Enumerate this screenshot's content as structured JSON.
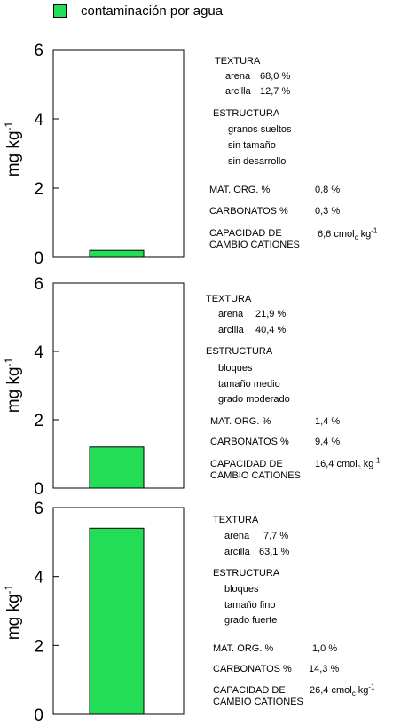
{
  "legend": {
    "label": "contaminación por agua",
    "color": "#22dd55"
  },
  "chart_data": [
    {
      "type": "bar",
      "ylabel": "mg kg-1",
      "ylim": [
        0,
        6
      ],
      "yticks": [
        "0",
        "2",
        "4",
        "6"
      ],
      "series": [
        {
          "name": "contaminación por agua",
          "values": [
            0.2
          ]
        }
      ]
    },
    {
      "type": "bar",
      "ylabel": "mg kg-1",
      "ylim": [
        0,
        6
      ],
      "yticks": [
        "0",
        "2",
        "4",
        "6"
      ],
      "series": [
        {
          "name": "contaminación por agua",
          "values": [
            1.2
          ]
        }
      ]
    },
    {
      "type": "bar",
      "ylabel": "mg kg-1",
      "ylim": [
        0,
        6
      ],
      "yticks": [
        "0",
        "2",
        "4",
        "6"
      ],
      "series": [
        {
          "name": "contaminación por agua",
          "values": [
            5.4
          ]
        }
      ]
    }
  ],
  "panels": [
    {
      "textura_label": "TEXTURA",
      "arena_label": "arena",
      "arena_value": "68,0",
      "arena_unit": "%",
      "arcilla_label": "arcilla",
      "arcilla_value": "12,7",
      "arcilla_unit": "%",
      "estructura_label": "ESTRUCTURA",
      "estructura_1": "granos sueltos",
      "estructura_2": "sin tamaño",
      "estructura_3": "sin desarrollo",
      "mat_org_label": "MAT. ORG. %",
      "mat_org_value": "0,8 %",
      "carbonatos_label": "CARBONATOS %",
      "carbonatos_value": "0,3 %",
      "cic_label_1": "CAPACIDAD DE",
      "cic_label_2": "CAMBIO CATIONES",
      "cic_value": "6,6 cmol",
      "cic_sub": "c",
      "cic_unit": " kg",
      "cic_sup": "-1"
    },
    {
      "textura_label": "TEXTURA",
      "arena_label": "arena",
      "arena_value": "21,9",
      "arena_unit": "%",
      "arcilla_label": "arcilla",
      "arcilla_value": "40,4",
      "arcilla_unit": "%",
      "estructura_label": "ESTRUCTURA",
      "estructura_1": "bloques",
      "estructura_2": "tamaño   medio",
      "estructura_3": "grado   moderado",
      "mat_org_label": "MAT. ORG. %",
      "mat_org_value": "1,4 %",
      "carbonatos_label": "CARBONATOS %",
      "carbonatos_value": "9,4 %",
      "cic_label_1": "CAPACIDAD DE",
      "cic_label_2": "CAMBIO CATIONES",
      "cic_value": "16,4 cmol",
      "cic_sub": "c",
      "cic_unit": " kg",
      "cic_sup": "-1"
    },
    {
      "textura_label": "TEXTURA",
      "arena_label": "arena",
      "arena_value": "7,7",
      "arena_unit": "%",
      "arcilla_label": "arcilla",
      "arcilla_value": "63,1",
      "arcilla_unit": "%",
      "estructura_label": "ESTRUCTURA",
      "estructura_1": "bloques",
      "estructura_2": "tamaño  fino",
      "estructura_3": "grado  fuerte",
      "mat_org_label": "MAT. ORG. %",
      "mat_org_value": "1,0 %",
      "carbonatos_label": "CARBONATOS %",
      "carbonatos_value": "14,3 %",
      "cic_label_1": "CAPACIDAD DE",
      "cic_label_2": "CAMBIO CATIONES",
      "cic_value": "26,4 cmol",
      "cic_sub": "c",
      "cic_unit": " kg",
      "cic_sup": "-1"
    }
  ]
}
